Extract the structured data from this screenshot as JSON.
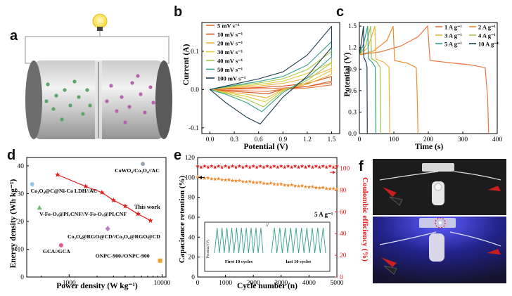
{
  "panels": {
    "a": "a",
    "b": "b",
    "c": "c",
    "d": "d",
    "e": "e",
    "f": "f"
  },
  "chart_data": [
    {
      "id": "b",
      "type": "line",
      "title": "",
      "xlabel": "Potential (V)",
      "ylabel": "Current (A)",
      "xlim": [
        -0.1,
        1.6
      ],
      "ylim": [
        -0.115,
        0.175
      ],
      "xticks": [
        "0.0",
        "0.3",
        "0.6",
        "0.9",
        "1.2",
        "1.5"
      ],
      "yticks": [
        "-0.1",
        "0.0",
        "0.1"
      ],
      "series": [
        {
          "name": "5 mV s⁻¹",
          "color": "#e8743b",
          "upper": [
            [
              0,
              0.0
            ],
            [
              0.3,
              0.001
            ],
            [
              0.6,
              0.002
            ],
            [
              0.9,
              0.004
            ],
            [
              1.2,
              0.008
            ],
            [
              1.5,
              0.018
            ]
          ],
          "lower": [
            [
              1.5,
              0.012
            ],
            [
              1.2,
              0.004
            ],
            [
              0.9,
              0.001
            ],
            [
              0.7,
              -0.005
            ],
            [
              0.45,
              -0.003
            ],
            [
              0.2,
              -0.002
            ],
            [
              0,
              0.0
            ]
          ]
        },
        {
          "name": "10 mV s⁻¹",
          "color": "#d4531c",
          "upper": [
            [
              0,
              0.0
            ],
            [
              0.3,
              0.003
            ],
            [
              0.6,
              0.005
            ],
            [
              0.9,
              0.009
            ],
            [
              1.2,
              0.016
            ],
            [
              1.5,
              0.034
            ]
          ],
          "lower": [
            [
              1.5,
              0.022
            ],
            [
              1.2,
              0.008
            ],
            [
              0.9,
              0.001
            ],
            [
              0.72,
              -0.011
            ],
            [
              0.45,
              -0.007
            ],
            [
              0.2,
              -0.004
            ],
            [
              0,
              0.0
            ]
          ]
        },
        {
          "name": "20 mV s⁻¹",
          "color": "#f2b13e",
          "upper": [
            [
              0,
              0.0
            ],
            [
              0.3,
              0.005
            ],
            [
              0.6,
              0.009
            ],
            [
              0.9,
              0.016
            ],
            [
              1.2,
              0.03
            ],
            [
              1.5,
              0.055
            ]
          ],
          "lower": [
            [
              1.5,
              0.04
            ],
            [
              1.2,
              0.014
            ],
            [
              0.9,
              0.0
            ],
            [
              0.7,
              -0.022
            ],
            [
              0.45,
              -0.012
            ],
            [
              0.2,
              -0.006
            ],
            [
              0,
              0.0
            ]
          ]
        },
        {
          "name": "30 mV s⁻¹",
          "color": "#e2cc3f",
          "upper": [
            [
              0,
              0.0
            ],
            [
              0.3,
              0.007
            ],
            [
              0.6,
              0.013
            ],
            [
              0.9,
              0.022
            ],
            [
              1.2,
              0.042
            ],
            [
              1.5,
              0.07
            ]
          ],
          "lower": [
            [
              1.5,
              0.05
            ],
            [
              1.2,
              0.018
            ],
            [
              0.9,
              -0.002
            ],
            [
              0.68,
              -0.032
            ],
            [
              0.45,
              -0.018
            ],
            [
              0.2,
              -0.008
            ],
            [
              0,
              0.0
            ]
          ]
        },
        {
          "name": "40 mV s⁻¹",
          "color": "#a6c94a",
          "upper": [
            [
              0,
              0.0
            ],
            [
              0.3,
              0.009
            ],
            [
              0.6,
              0.017
            ],
            [
              0.9,
              0.028
            ],
            [
              1.2,
              0.052
            ],
            [
              1.5,
              0.1
            ]
          ],
          "lower": [
            [
              1.5,
              0.07
            ],
            [
              1.2,
              0.024
            ],
            [
              0.9,
              -0.004
            ],
            [
              0.66,
              -0.045
            ],
            [
              0.45,
              -0.025
            ],
            [
              0.2,
              -0.01
            ],
            [
              0,
              0.0
            ]
          ]
        },
        {
          "name": "50 mV s⁻¹",
          "color": "#3aa08b",
          "upper": [
            [
              0,
              0.0
            ],
            [
              0.3,
              0.011
            ],
            [
              0.6,
              0.021
            ],
            [
              0.9,
              0.034
            ],
            [
              1.2,
              0.064
            ],
            [
              1.5,
              0.125
            ]
          ],
          "lower": [
            [
              1.5,
              0.085
            ],
            [
              1.2,
              0.03
            ],
            [
              0.9,
              -0.008
            ],
            [
              0.64,
              -0.058
            ],
            [
              0.45,
              -0.034
            ],
            [
              0.2,
              -0.013
            ],
            [
              0,
              0.0
            ]
          ]
        },
        {
          "name": "100 mV s⁻¹",
          "color": "#1e3a4c",
          "upper": [
            [
              0,
              0.0
            ],
            [
              0.3,
              0.014
            ],
            [
              0.6,
              0.028
            ],
            [
              0.9,
              0.046
            ],
            [
              1.2,
              0.09
            ],
            [
              1.5,
              0.165
            ]
          ],
          "lower": [
            [
              1.5,
              0.11
            ],
            [
              1.2,
              0.035
            ],
            [
              0.9,
              -0.02
            ],
            [
              0.62,
              -0.09
            ],
            [
              0.45,
              -0.072
            ],
            [
              0.2,
              -0.035
            ],
            [
              0,
              0.0
            ]
          ]
        }
      ]
    },
    {
      "id": "c",
      "type": "line",
      "title": "",
      "xlabel": "Time (s)",
      "ylabel": "Potential (V)",
      "xlim": [
        0,
        400
      ],
      "ylim": [
        0.0,
        1.55
      ],
      "xticks": [
        "0",
        "100",
        "200",
        "300",
        "400"
      ],
      "yticks": [
        "0.0",
        "0.3",
        "0.6",
        "0.9",
        "1.2",
        "1.5"
      ],
      "series": [
        {
          "name": "1 A g⁻¹",
          "color": "#e8743b",
          "points": [
            [
              0,
              1.1
            ],
            [
              60,
              1.14
            ],
            [
              120,
              1.22
            ],
            [
              170,
              1.35
            ],
            [
              198,
              1.5
            ],
            [
              205,
              1.02
            ],
            [
              260,
              0.99
            ],
            [
              320,
              0.96
            ],
            [
              365,
              0.92
            ],
            [
              372,
              0.5
            ],
            [
              375,
              0.0
            ]
          ]
        },
        {
          "name": "2 A g⁻¹",
          "color": "#f08a2c",
          "points": [
            [
              0,
              1.1
            ],
            [
              40,
              1.15
            ],
            [
              80,
              1.3
            ],
            [
              98,
              1.5
            ],
            [
              102,
              1.02
            ],
            [
              140,
              0.98
            ],
            [
              165,
              0.92
            ],
            [
              168,
              0.5
            ],
            [
              170,
              0.0
            ]
          ]
        },
        {
          "name": "3 A g⁻¹",
          "color": "#f2b13e",
          "points": [
            [
              0,
              1.1
            ],
            [
              25,
              1.2
            ],
            [
              45,
              1.5
            ],
            [
              48,
              1.04
            ],
            [
              70,
              1.0
            ],
            [
              86,
              0.93
            ],
            [
              88,
              0.0
            ]
          ]
        },
        {
          "name": "4 A g⁻¹",
          "color": "#9dc34a",
          "points": [
            [
              0,
              1.1
            ],
            [
              18,
              1.22
            ],
            [
              33,
              1.5
            ],
            [
              35,
              1.05
            ],
            [
              50,
              1.0
            ],
            [
              60,
              0.93
            ],
            [
              62,
              0.0
            ]
          ]
        },
        {
          "name": "5 A g⁻¹",
          "color": "#2f9e8c",
          "points": [
            [
              0,
              1.1
            ],
            [
              12,
              1.25
            ],
            [
              24,
              1.5
            ],
            [
              26,
              1.05
            ],
            [
              38,
              0.99
            ],
            [
              46,
              0.93
            ],
            [
              48,
              0.0
            ]
          ]
        },
        {
          "name": "10 A g⁻¹",
          "color": "#1e3a4c",
          "points": [
            [
              0,
              1.1
            ],
            [
              6,
              1.28
            ],
            [
              12,
              1.5
            ],
            [
              13,
              1.06
            ],
            [
              19,
              1.0
            ],
            [
              22,
              0.93
            ],
            [
              23,
              0.0
            ]
          ]
        }
      ]
    },
    {
      "id": "d",
      "type": "scatter",
      "title": "",
      "xlabel": "Power density (W kg⁻¹)",
      "ylabel": "Energy density (Wh kg⁻¹)",
      "xscale": "log",
      "xlim": [
        350,
        11000
      ],
      "ylim": [
        0,
        43
      ],
      "xticks": [
        "1000",
        "10000"
      ],
      "yticks": [
        "0",
        "10",
        "20",
        "30",
        "40"
      ],
      "this_work": {
        "label": "This work",
        "color": "#e02020",
        "points": [
          [
            750,
            36.8
          ],
          [
            1500,
            32.6
          ],
          [
            2250,
            30.4
          ],
          [
            3000,
            27.6
          ],
          [
            4000,
            25.5
          ],
          [
            5500,
            22.7
          ],
          [
            7500,
            20.3
          ]
        ]
      },
      "others": [
        {
          "label": "CoWO₄/Co₃O₄//AC",
          "x": 6200,
          "y": 40.7,
          "color": "#9aa4b0"
        },
        {
          "label": "Co₃O₄@C@Ni-Co LDH//AC",
          "x": 400,
          "y": 33.4,
          "color": "#8fc6e8"
        },
        {
          "label": "V-Fe-Oₓ@PIₑCNF//V-Fe-Oₓ@PIₑCNF",
          "x": 480,
          "y": 25.0,
          "color": "#6dbb6d"
        },
        {
          "label": "Co₃O₄@RGO@CD//Co₃O₄@RGO@CD",
          "x": 2600,
          "y": 17.4,
          "color": "#b87fc4"
        },
        {
          "label": "GCA//GCA",
          "x": 820,
          "y": 11.4,
          "color": "#e85a8a"
        },
        {
          "label": "ONPC-900//ONPC-900",
          "x": 9500,
          "y": 5.9,
          "color": "#f0a030"
        }
      ]
    },
    {
      "id": "e",
      "type": "scatter",
      "title": "",
      "xlabel": "Cycle number (n)",
      "ylabel": "Capacitance retention (%)",
      "y2label": "Coulombic efficiency (%)",
      "xlim": [
        0,
        5000
      ],
      "ylim": [
        0,
        120
      ],
      "y2lim": [
        0,
        110
      ],
      "xticks": [
        "0",
        "1000",
        "2000",
        "3000",
        "4000",
        "5000"
      ],
      "yticks": [
        "0",
        "20",
        "40",
        "60",
        "80",
        "100",
        "120"
      ],
      "y2ticks": [
        "0",
        "20",
        "40",
        "60",
        "80",
        "100"
      ],
      "series": [
        {
          "name": "Capacitance retention",
          "axis": "left",
          "color": "#f08a2c",
          "marker": "star",
          "start": 100,
          "end": 88.2
        },
        {
          "name": "Coulombic efficiency",
          "axis": "right",
          "color": "#e02020",
          "marker": "star",
          "start": 101.5,
          "end": 101.5
        }
      ],
      "annotation": "5 A g⁻¹",
      "inset": {
        "ylabel": "Potential (V)",
        "first_label": "First 10 cycles",
        "last_label": "last 10 cycles",
        "break_mark": "//",
        "cycles": 10
      }
    }
  ],
  "axis_titles": {
    "b": {
      "x": "Potential (V)",
      "y": "Current (A)"
    },
    "c": {
      "x": "Time (s)",
      "y": "Potential (V)"
    },
    "d": {
      "x": "Power density (W kg⁻¹)",
      "y": "Energy density (Wh kg⁻¹)"
    },
    "e": {
      "x": "Cycle number (n)",
      "y": "Capacitance retention (%)",
      "y2": "Coulombic efficiency (%)"
    }
  },
  "colors": {
    "this_work": "#e02020",
    "ce": "#e02020",
    "retention": "#f08a2c",
    "photo_bg": "#1a1a1a",
    "photo_glow": "#3a3aff"
  }
}
